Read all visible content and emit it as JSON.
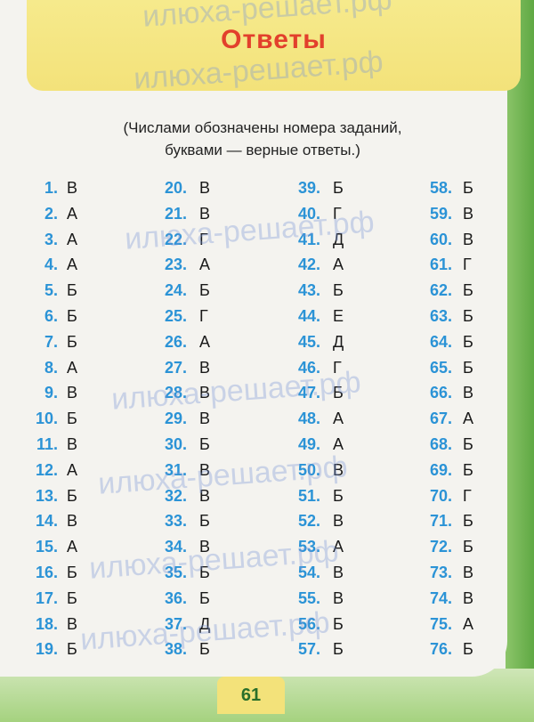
{
  "header": {
    "title": "Ответы"
  },
  "subtitle": {
    "line1": "(Числами обозначены номера заданий,",
    "line2": "буквами — верные ответы.)"
  },
  "answers": [
    [
      "1.",
      "В"
    ],
    [
      "2.",
      "А"
    ],
    [
      "3.",
      "А"
    ],
    [
      "4.",
      "А"
    ],
    [
      "5.",
      "Б"
    ],
    [
      "6.",
      "Б"
    ],
    [
      "7.",
      "Б"
    ],
    [
      "8.",
      "А"
    ],
    [
      "9.",
      "В"
    ],
    [
      "10.",
      "Б"
    ],
    [
      "11.",
      "В"
    ],
    [
      "12.",
      "А"
    ],
    [
      "13.",
      "Б"
    ],
    [
      "14.",
      "В"
    ],
    [
      "15.",
      "А"
    ],
    [
      "16.",
      "Б"
    ],
    [
      "17.",
      "Б"
    ],
    [
      "18.",
      "В"
    ],
    [
      "19.",
      "Б"
    ],
    [
      "20.",
      "В"
    ],
    [
      "21.",
      "В"
    ],
    [
      "22.",
      "Г"
    ],
    [
      "23.",
      "А"
    ],
    [
      "24.",
      "Б"
    ],
    [
      "25.",
      "Г"
    ],
    [
      "26.",
      "А"
    ],
    [
      "27.",
      "В"
    ],
    [
      "28.",
      "В"
    ],
    [
      "29.",
      "В"
    ],
    [
      "30.",
      "Б"
    ],
    [
      "31.",
      "В"
    ],
    [
      "32.",
      "В"
    ],
    [
      "33.",
      "Б"
    ],
    [
      "34.",
      "В"
    ],
    [
      "35.",
      "Б"
    ],
    [
      "36.",
      "Б"
    ],
    [
      "37.",
      "Д"
    ],
    [
      "38.",
      "Б"
    ],
    [
      "39.",
      "Б"
    ],
    [
      "40.",
      "Г"
    ],
    [
      "41.",
      "Д"
    ],
    [
      "42.",
      "А"
    ],
    [
      "43.",
      "Б"
    ],
    [
      "44.",
      "Е"
    ],
    [
      "45.",
      "Д"
    ],
    [
      "46.",
      "Г"
    ],
    [
      "47.",
      "Б"
    ],
    [
      "48.",
      "А"
    ],
    [
      "49.",
      "А"
    ],
    [
      "50.",
      "В"
    ],
    [
      "51.",
      "Б"
    ],
    [
      "52.",
      "В"
    ],
    [
      "53.",
      "А"
    ],
    [
      "54.",
      "В"
    ],
    [
      "55.",
      "В"
    ],
    [
      "56.",
      "Б"
    ],
    [
      "57.",
      "Б"
    ],
    [
      "58.",
      "Б"
    ],
    [
      "59.",
      "В"
    ],
    [
      "60.",
      "В"
    ],
    [
      "61.",
      "Г"
    ],
    [
      "62.",
      "Б"
    ],
    [
      "63.",
      "Б"
    ],
    [
      "64.",
      "Б"
    ],
    [
      "65.",
      "Б"
    ],
    [
      "66.",
      "В"
    ],
    [
      "67.",
      "А"
    ],
    [
      "68.",
      "Б"
    ],
    [
      "69.",
      "Б"
    ],
    [
      "70.",
      "Г"
    ],
    [
      "71.",
      "Б"
    ],
    [
      "72.",
      "Б"
    ],
    [
      "73.",
      "В"
    ],
    [
      "74.",
      "В"
    ],
    [
      "75.",
      "А"
    ],
    [
      "76.",
      "Б"
    ]
  ],
  "page_number": "61",
  "watermark": "илюха-решает.рф",
  "colors": {
    "number": "#2b93d6",
    "title": "#e2402c",
    "banner": "#f3e27a",
    "green": "#6fb24f"
  }
}
